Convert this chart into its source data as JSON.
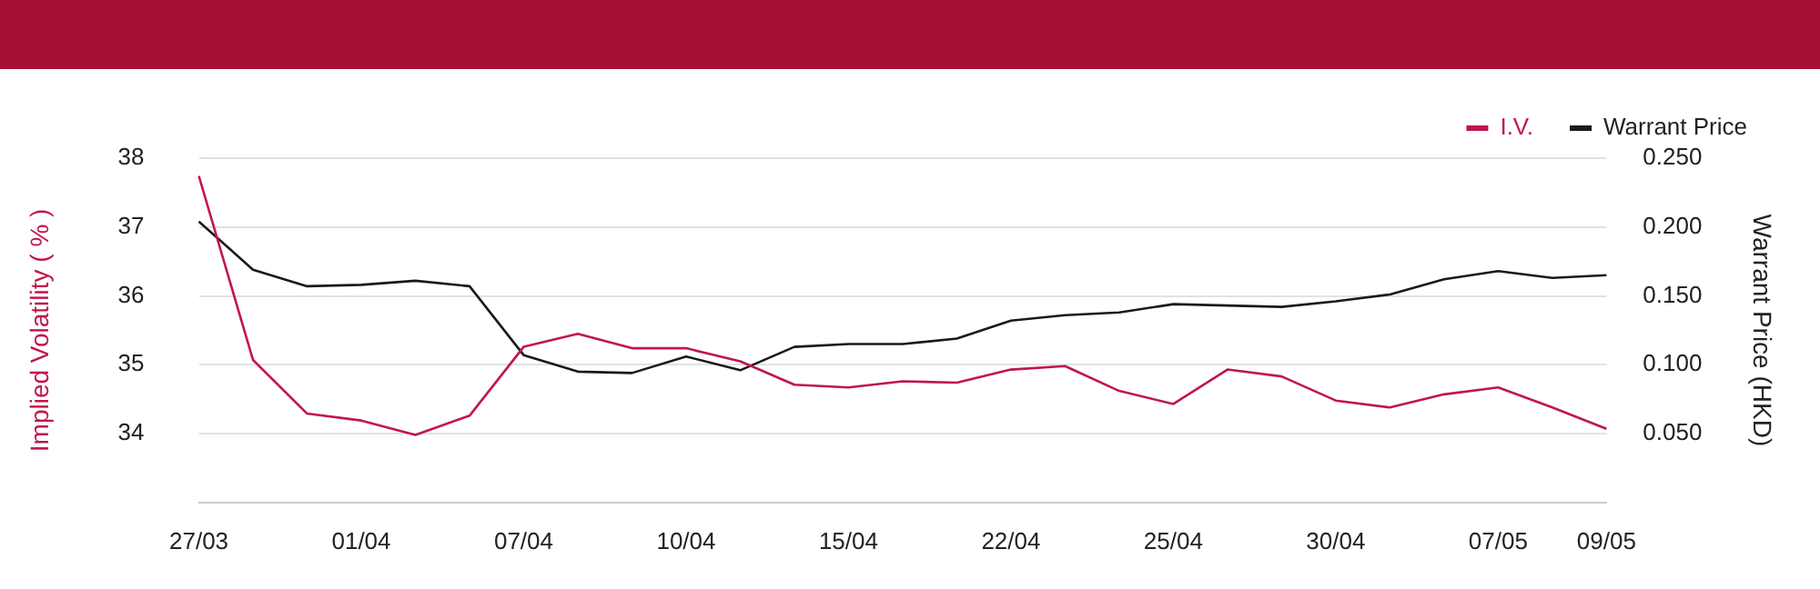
{
  "chart_data": {
    "type": "line",
    "categories": [
      "27/03",
      null,
      null,
      "01/04",
      null,
      null,
      "07/04",
      null,
      null,
      "10/04",
      null,
      null,
      "15/04",
      null,
      null,
      "22/04",
      null,
      null,
      "25/04",
      null,
      null,
      "30/04",
      null,
      null,
      "07/05",
      null,
      "09/05"
    ],
    "series": [
      {
        "name": "I.V.",
        "color": "#c0174a",
        "values": [
          37.74,
          35.07,
          34.29,
          34.19,
          33.98,
          34.26,
          35.26,
          35.45,
          35.24,
          35.24,
          35.05,
          34.71,
          34.67,
          34.76,
          34.74,
          34.93,
          34.98,
          34.62,
          34.43,
          34.93,
          34.83,
          34.48,
          34.38,
          34.57,
          34.67,
          34.38,
          34.07
        ]
      },
      {
        "name": "Warrant Price",
        "color": "#1a1a1a",
        "axis": "y2",
        "values": [
          0.204,
          0.169,
          0.157,
          0.158,
          0.161,
          0.157,
          0.107,
          0.095,
          0.094,
          0.106,
          0.096,
          0.113,
          0.115,
          0.115,
          0.119,
          0.132,
          0.136,
          0.138,
          0.144,
          0.143,
          0.142,
          0.146,
          0.151,
          0.162,
          0.168,
          0.163,
          0.165
        ]
      }
    ],
    "ylabel": "Implied Volatility ( % )",
    "y2label": "Warrant Price (HKD)",
    "ylim": [
      33,
      38
    ],
    "yticks": [
      34,
      35,
      36,
      37,
      38
    ],
    "y2lim": [
      0,
      0.25
    ],
    "y2ticks": [
      {
        "value": 0.05,
        "label": "0.050"
      },
      {
        "value": 0.1,
        "label": "0.100"
      },
      {
        "value": 0.15,
        "label": "0.150"
      },
      {
        "value": 0.2,
        "label": "0.200"
      },
      {
        "value": 0.25,
        "label": "0.250"
      }
    ],
    "grid": "y",
    "legend": "top right",
    "marker": "none",
    "line_style": "solid"
  }
}
